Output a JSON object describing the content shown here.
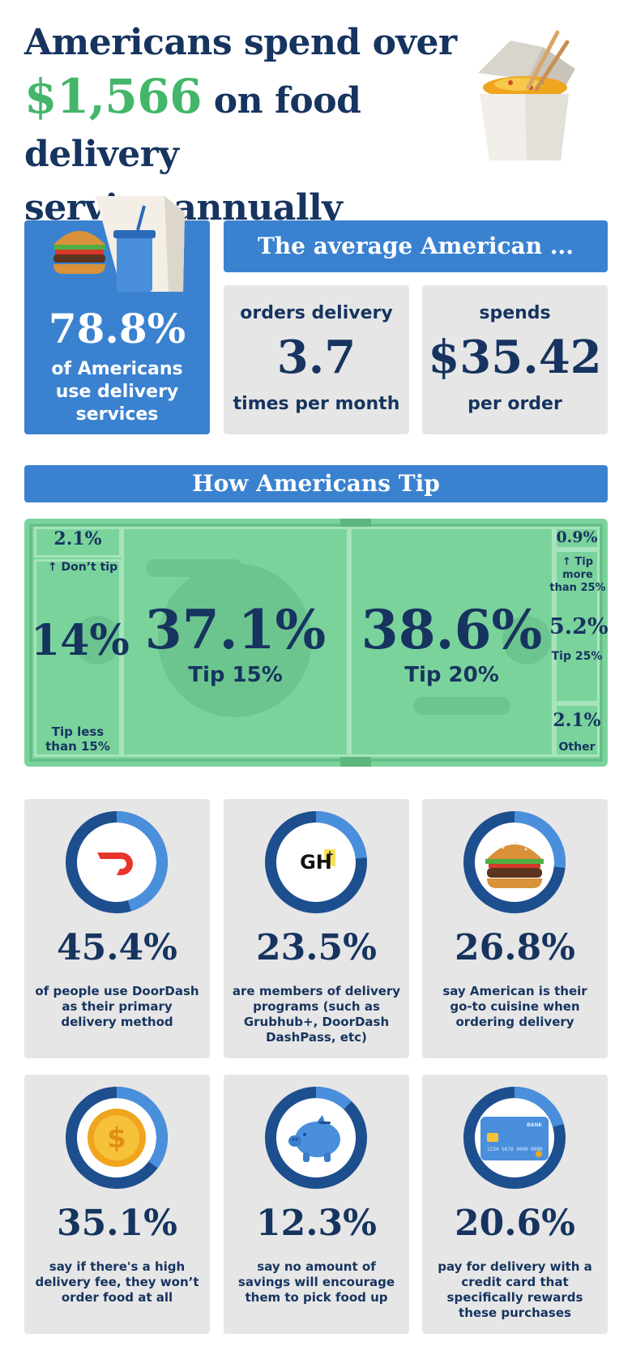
{
  "title": {
    "line1": "Americans spend over",
    "amount": "$1,566",
    "line2_rest": " on food delivery",
    "line3": "service annually"
  },
  "usage": {
    "percent": "78.8%",
    "text_line1": "of Americans",
    "text_line2": "use delivery",
    "text_line3": "services"
  },
  "average": {
    "header": "The average American ...",
    "orders": {
      "top": "orders delivery",
      "value": "3.7",
      "bottom": "times per month"
    },
    "spends": {
      "top": "spends",
      "value": "$35.42",
      "bottom": "per order"
    }
  },
  "tips": {
    "header": "How Americans Tip",
    "dont_tip": {
      "value": "2.1%",
      "label": "↑ Don’t tip"
    },
    "less_15": {
      "value": "14%",
      "label_line1": "Tip less",
      "label_line2": "than 15%"
    },
    "tip_15": {
      "value": "37.1%",
      "label": "Tip 15%"
    },
    "tip_20": {
      "value": "38.6%",
      "label": "Tip 20%"
    },
    "more_25": {
      "value": "0.9%",
      "label_line1": "↑ Tip more",
      "label_line2": "than 25%"
    },
    "tip_25": {
      "value": "5.2%",
      "label": "Tip 25%"
    },
    "other": {
      "value": "2.1%",
      "label": "Other"
    }
  },
  "stats": [
    {
      "percent": "45.4%",
      "desc": "of people use DoorDash as their primary delivery method",
      "icon": "doordash-logo-icon",
      "fill": 0.454
    },
    {
      "percent": "23.5%",
      "desc": "are members of delivery programs (such as Grubhub+, DoorDash DashPass, etc)",
      "icon": "grubhub-plus-logo-icon",
      "logo_text": "GH",
      "fill": 0.235
    },
    {
      "percent": "26.8%",
      "desc": "say American is their go-to cuisine when ordering delivery",
      "icon": "burger-icon",
      "fill": 0.268
    },
    {
      "percent": "35.1%",
      "desc": "say if there's a high delivery fee, they won’t order food at all",
      "icon": "coin-icon",
      "fill": 0.351
    },
    {
      "percent": "12.3%",
      "desc": "say no amount of savings will encourage them to pick food up",
      "icon": "piggy-bank-icon",
      "fill": 0.123
    },
    {
      "percent": "20.6%",
      "desc": "pay for delivery with a credit card that specifically rewards these purchases",
      "icon": "credit-card-icon",
      "card_text": "BANK",
      "card_number": "1234 5678 9000 0000",
      "fill": 0.206
    }
  ],
  "colors": {
    "navy": "#16345f",
    "blue": "#3a82d0",
    "green": "#43b66a",
    "money_green": "#7bd39c",
    "gray": "#e6e6e6",
    "ring_dark": "#1d4f8f",
    "ring_light": "#4a8fdc"
  }
}
